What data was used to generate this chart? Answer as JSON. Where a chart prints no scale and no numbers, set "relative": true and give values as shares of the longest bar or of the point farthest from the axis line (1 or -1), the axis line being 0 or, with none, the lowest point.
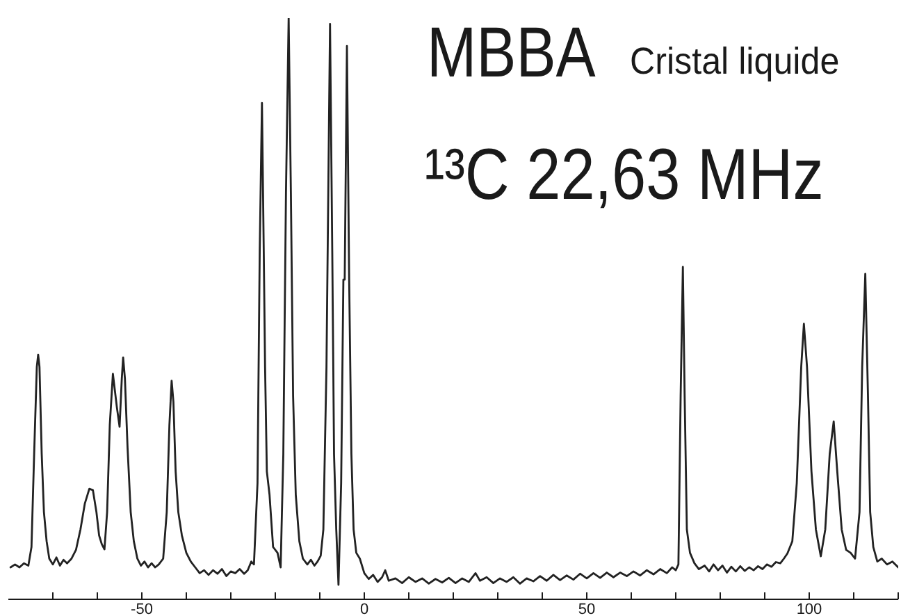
{
  "chart_data": {
    "type": "line",
    "title": "MBBA",
    "subtitle": "Cristal liquide",
    "annotations": [
      "¹³C 22,63 MHz"
    ],
    "relative": true,
    "color": "#222222",
    "marker": "none",
    "line_style": "solid",
    "xlim": [
      -80,
      120
    ],
    "xticks": [
      {
        "value": -70,
        "label": null
      },
      {
        "value": -60,
        "label": null
      },
      -50,
      {
        "value": -40,
        "label": null
      },
      {
        "value": -30,
        "label": null
      },
      {
        "value": -20,
        "label": null
      },
      {
        "value": -10,
        "label": null
      },
      0,
      {
        "value": 10,
        "label": null
      },
      {
        "value": 20,
        "label": null
      },
      {
        "value": 30,
        "label": null
      },
      {
        "value": 40,
        "label": null
      },
      50,
      {
        "value": 60,
        "label": null
      },
      {
        "value": 70,
        "label": null
      },
      {
        "value": 80,
        "label": null
      },
      {
        "value": 90,
        "label": null
      },
      100,
      {
        "value": 110,
        "label": null
      },
      {
        "value": 120,
        "label": null
      }
    ],
    "x": [
      -79.5,
      -78.5,
      -77.5,
      -76.5,
      -75.5,
      -74.8,
      -74.2,
      -73.6,
      -73.3,
      -73.0,
      -72.5,
      -72.0,
      -71.4,
      -70.8,
      -70.0,
      -69.2,
      -68.4,
      -67.6,
      -66.8,
      -65.8,
      -64.8,
      -63.8,
      -62.8,
      -61.8,
      -61.0,
      -60.2,
      -59.6,
      -59.0,
      -58.4,
      -57.8,
      -57.2,
      -56.5,
      -55.6,
      -55.0,
      -54.5,
      -54.2,
      -53.8,
      -53.2,
      -52.5,
      -51.8,
      -51.0,
      -50.2,
      -49.4,
      -48.6,
      -47.8,
      -47.0,
      -46.2,
      -45.2,
      -44.4,
      -43.8,
      -43.3,
      -42.9,
      -42.4,
      -41.8,
      -41.0,
      -40.0,
      -39.0,
      -38.0,
      -37.0,
      -36.0,
      -35.0,
      -34.0,
      -33.0,
      -32.0,
      -31.0,
      -30.0,
      -29.0,
      -28.0,
      -27.0,
      -26.2,
      -25.4,
      -24.8,
      -24.0,
      -23.5,
      -23.0,
      -22.6,
      -22.3,
      -21.9,
      -21.3,
      -20.5,
      -19.5,
      -18.8,
      -18.2,
      -17.6,
      -17.0,
      -16.5,
      -16.0,
      -15.4,
      -14.6,
      -13.8,
      -12.8,
      -12.0,
      -11.2,
      -10.5,
      -9.8,
      -9.2,
      -8.5,
      -7.7,
      -7.2,
      -6.8,
      -6.3,
      -5.8,
      -5.2,
      -4.7,
      -4.4,
      -3.9,
      -3.4,
      -2.9,
      -2.4,
      -1.8,
      -1.0,
      0.0,
      1.0,
      2.0,
      3.0,
      4.0,
      4.7,
      5.5,
      7.0,
      8.5,
      10.0,
      11.5,
      13.0,
      14.5,
      16.0,
      17.5,
      19.0,
      20.5,
      22.0,
      23.5,
      25.0,
      26.0,
      27.5,
      29.0,
      30.5,
      32.0,
      33.5,
      35.0,
      36.5,
      38.0,
      39.5,
      41.0,
      42.5,
      44.0,
      45.5,
      47.0,
      48.5,
      50.0,
      51.5,
      53.0,
      54.5,
      56.0,
      57.5,
      59.0,
      60.5,
      62.0,
      63.5,
      65.0,
      66.5,
      68.0,
      69.2,
      70.0,
      70.6,
      71.1,
      71.6,
      72.0,
      72.5,
      73.2,
      74.2,
      75.2,
      76.5,
      77.5,
      78.5,
      79.5,
      80.5,
      81.5,
      82.5,
      83.5,
      84.5,
      85.5,
      86.5,
      87.5,
      88.5,
      89.5,
      90.5,
      91.5,
      92.5,
      93.5,
      94.3,
      95.1,
      96.2,
      97.2,
      98.2,
      98.8,
      99.5,
      100.5,
      101.5,
      102.6,
      103.6,
      104.6,
      105.5,
      106.3,
      107.3,
      108.3,
      109.3,
      110.3,
      111.3,
      111.9,
      112.6,
      113.2,
      113.7,
      114.4,
      115.3,
      116.3,
      117.5,
      118.7,
      120.0
    ],
    "values": [
      0.055,
      0.06,
      0.055,
      0.062,
      0.058,
      0.09,
      0.25,
      0.4,
      0.421,
      0.4,
      0.25,
      0.15,
      0.1,
      0.07,
      0.06,
      0.072,
      0.058,
      0.068,
      0.062,
      0.07,
      0.085,
      0.12,
      0.165,
      0.19,
      0.188,
      0.15,
      0.11,
      0.095,
      0.086,
      0.15,
      0.3,
      0.388,
      0.33,
      0.297,
      0.38,
      0.416,
      0.38,
      0.26,
      0.15,
      0.1,
      0.07,
      0.058,
      0.065,
      0.055,
      0.062,
      0.055,
      0.06,
      0.07,
      0.15,
      0.3,
      0.376,
      0.34,
      0.22,
      0.15,
      0.11,
      0.08,
      0.065,
      0.055,
      0.045,
      0.05,
      0.042,
      0.05,
      0.044,
      0.052,
      0.04,
      0.048,
      0.045,
      0.052,
      0.044,
      0.05,
      0.065,
      0.06,
      0.2,
      0.6,
      0.854,
      0.6,
      0.4,
      0.22,
      0.18,
      0.09,
      0.08,
      0.055,
      0.25,
      0.7,
      1,
      0.7,
      0.35,
      0.18,
      0.1,
      0.07,
      0.06,
      0.068,
      0.058,
      0.065,
      0.075,
      0.12,
      0.4,
      0.99,
      0.6,
      0.25,
      0.12,
      0.025,
      0.2,
      0.55,
      0.55,
      0.952,
      0.55,
      0.25,
      0.12,
      0.08,
      0.07,
      0.045,
      0.035,
      0.042,
      0.03,
      0.038,
      0.05,
      0.032,
      0.036,
      0.028,
      0.038,
      0.03,
      0.036,
      0.027,
      0.035,
      0.029,
      0.037,
      0.028,
      0.036,
      0.03,
      0.045,
      0.032,
      0.038,
      0.028,
      0.036,
      0.03,
      0.038,
      0.027,
      0.036,
      0.031,
      0.04,
      0.032,
      0.042,
      0.033,
      0.041,
      0.034,
      0.044,
      0.036,
      0.045,
      0.037,
      0.046,
      0.038,
      0.046,
      0.04,
      0.048,
      0.041,
      0.05,
      0.043,
      0.052,
      0.045,
      0.055,
      0.05,
      0.06,
      0.35,
      0.572,
      0.35,
      0.12,
      0.08,
      0.062,
      0.052,
      0.058,
      0.048,
      0.06,
      0.05,
      0.058,
      0.046,
      0.056,
      0.048,
      0.057,
      0.049,
      0.055,
      0.05,
      0.057,
      0.052,
      0.06,
      0.056,
      0.064,
      0.062,
      0.07,
      0.079,
      0.1,
      0.2,
      0.4,
      0.474,
      0.4,
      0.22,
      0.12,
      0.074,
      0.12,
      0.25,
      0.306,
      0.22,
      0.12,
      0.085,
      0.08,
      0.07,
      0.15,
      0.4,
      0.56,
      0.35,
      0.15,
      0.09,
      0.065,
      0.07,
      0.06,
      0.065,
      0.055
    ]
  }
}
